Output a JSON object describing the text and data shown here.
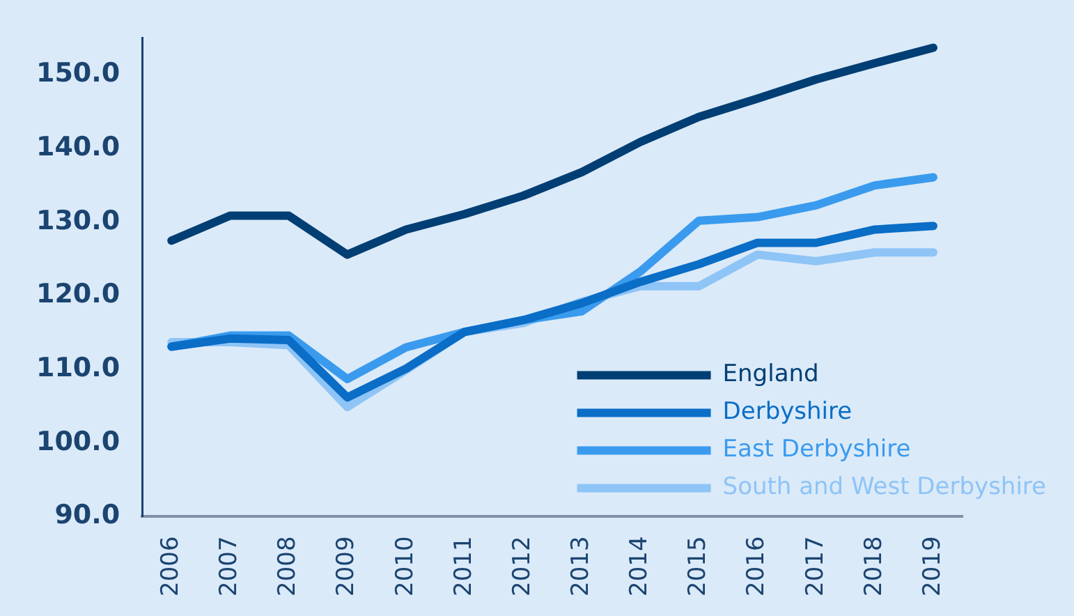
{
  "chart_data": {
    "type": "line",
    "categories": [
      "2006",
      "2007",
      "2008",
      "2009",
      "2010",
      "2011",
      "2012",
      "2013",
      "2014",
      "2015",
      "2016",
      "2017",
      "2018",
      "2019"
    ],
    "series": [
      {
        "name": "England",
        "color": "#003e74",
        "values": [
          127.5,
          130.9,
          130.9,
          125.6,
          129,
          131.1,
          133.6,
          136.8,
          140.9,
          144.3,
          146.8,
          149.4,
          151.6,
          153.7
        ]
      },
      {
        "name": "Derbyshire",
        "color": "#0a6dc6",
        "values": [
          113.1,
          114.2,
          114,
          106.2,
          110.1,
          115.1,
          116.7,
          119,
          121.9,
          124.3,
          127.2,
          127.2,
          129,
          129.5
        ]
      },
      {
        "name": "East Derbyshire",
        "color": "#3a9bee",
        "values": [
          113.1,
          114.6,
          114.6,
          108.7,
          113,
          115.1,
          116.7,
          117.9,
          123.3,
          130.2,
          130.7,
          132.3,
          135,
          136.1
        ]
      },
      {
        "name": "South and West Derbyshire",
        "color": "#8ec4f6",
        "values": [
          113.7,
          113.7,
          113.3,
          104.9,
          109.9,
          115.1,
          116.3,
          119.2,
          121.3,
          121.3,
          125.6,
          124.7,
          125.9,
          125.9
        ]
      }
    ],
    "ylim": [
      90,
      155
    ],
    "yticks": [
      {
        "value": 90,
        "label": "90.0"
      },
      {
        "value": 100,
        "label": "100.0"
      },
      {
        "value": 110,
        "label": "110.0"
      },
      {
        "value": 120,
        "label": "120.0"
      },
      {
        "value": 130,
        "label": "130.0"
      },
      {
        "value": 140,
        "label": "140.0"
      },
      {
        "value": 150,
        "label": "150.0"
      }
    ],
    "grid": false,
    "legend": "bottom right",
    "marker": "none",
    "line_style": "solid"
  }
}
